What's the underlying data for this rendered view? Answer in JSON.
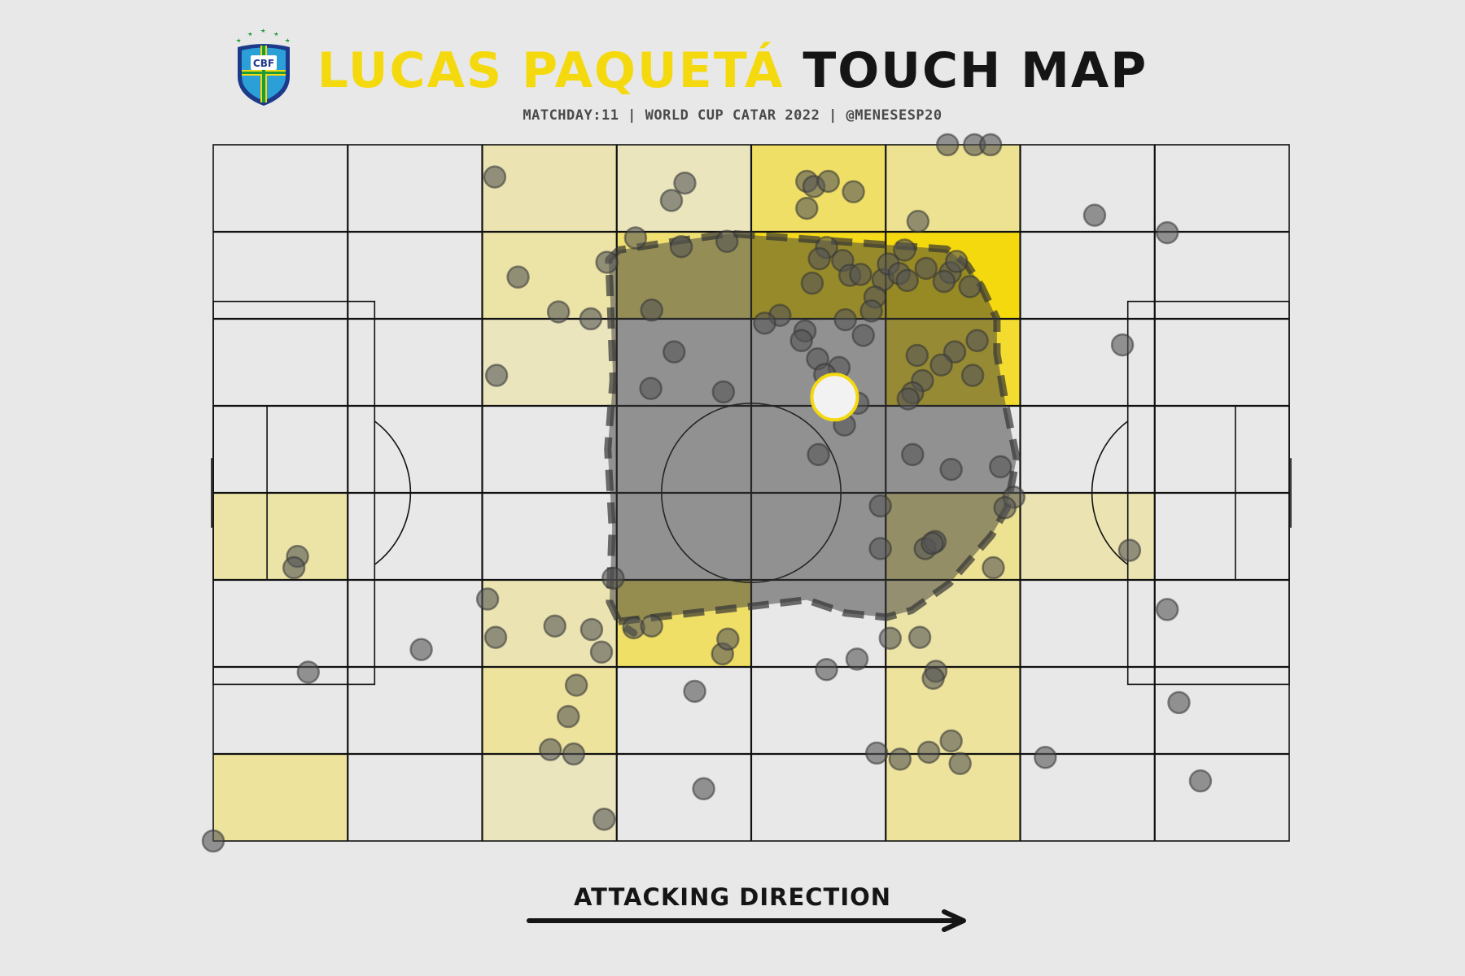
{
  "header": {
    "title_highlight": "LUCAS PAQUETÁ",
    "title_rest": "TOUCH MAP",
    "subtitle": "MATCHDAY:11 | WORLD CUP CATAR 2022 | @MENESESP20",
    "logo_text": "CBF"
  },
  "footer": {
    "direction_label": "ATTACKING DIRECTION"
  },
  "colors": {
    "background": "#e8e8e8",
    "highlight": "#f5d90f",
    "heat_max": "#f5d90f",
    "touch": "#555555",
    "hull": "#3a3a3a",
    "centroid_fill": "#f2f2f2",
    "centroid_edge": "#f5d90f"
  },
  "chart_data": {
    "type": "scatter",
    "pitch": {
      "length": 120,
      "width": 80,
      "direction": "left-to-right"
    },
    "grid": {
      "cols": 8,
      "rows": 8
    },
    "heat_grid": [
      [
        0,
        0,
        0.25,
        0.2,
        0.6,
        0.4,
        0,
        0
      ],
      [
        0,
        0,
        0.3,
        0.55,
        0.95,
        1.0,
        0,
        0
      ],
      [
        0,
        0,
        0.2,
        0,
        0,
        0.85,
        0,
        0
      ],
      [
        0,
        0,
        0,
        0,
        0,
        0,
        0,
        0
      ],
      [
        0.3,
        0,
        0,
        0,
        0,
        0.4,
        0.25,
        0
      ],
      [
        0,
        0,
        0.25,
        0.6,
        0,
        0.3,
        0,
        0
      ],
      [
        0,
        0,
        0.35,
        0,
        0,
        0.35,
        0,
        0
      ],
      [
        0.35,
        0,
        0.2,
        0,
        0,
        0.35,
        0,
        0
      ]
    ],
    "touches": [
      [
        31.4,
        3.7
      ],
      [
        52.6,
        4.4
      ],
      [
        51.1,
        6.4
      ],
      [
        66.2,
        4.2
      ],
      [
        67.0,
        4.8
      ],
      [
        68.6,
        4.2
      ],
      [
        71.4,
        5.4
      ],
      [
        66.2,
        7.3
      ],
      [
        81.9,
        0
      ],
      [
        84.9,
        0
      ],
      [
        86.7,
        0
      ],
      [
        78.6,
        8.8
      ],
      [
        98.3,
        8.1
      ],
      [
        106.4,
        10.1
      ],
      [
        47.1,
        10.7
      ],
      [
        52.2,
        11.7
      ],
      [
        57.3,
        11.1
      ],
      [
        43.9,
        13.5
      ],
      [
        34.0,
        15.2
      ],
      [
        38.5,
        19.2
      ],
      [
        42.1,
        20.0
      ],
      [
        48.9,
        19.0
      ],
      [
        31.6,
        26.5
      ],
      [
        51.4,
        23.8
      ],
      [
        48.8,
        28.0
      ],
      [
        56.9,
        28.4
      ],
      [
        66.8,
        15.9
      ],
      [
        68.4,
        11.8
      ],
      [
        67.6,
        13.1
      ],
      [
        70.2,
        13.3
      ],
      [
        71.0,
        15.0
      ],
      [
        72.2,
        14.9
      ],
      [
        74.7,
        15.5
      ],
      [
        77.1,
        12.1
      ],
      [
        75.3,
        13.7
      ],
      [
        76.5,
        14.8
      ],
      [
        77.4,
        15.6
      ],
      [
        79.5,
        14.2
      ],
      [
        82.2,
        14.7
      ],
      [
        81.5,
        15.7
      ],
      [
        82.9,
        13.4
      ],
      [
        84.4,
        16.3
      ],
      [
        73.8,
        17.5
      ],
      [
        73.4,
        19.1
      ],
      [
        70.5,
        20.1
      ],
      [
        66.0,
        21.4
      ],
      [
        63.2,
        19.6
      ],
      [
        65.6,
        22.5
      ],
      [
        67.4,
        24.6
      ],
      [
        69.8,
        25.6
      ],
      [
        72.5,
        21.9
      ],
      [
        68.2,
        26.4
      ],
      [
        61.5,
        20.5
      ],
      [
        82.7,
        23.8
      ],
      [
        78.5,
        24.2
      ],
      [
        81.2,
        25.3
      ],
      [
        79.1,
        27.1
      ],
      [
        78.0,
        28.5
      ],
      [
        77.5,
        29.2
      ],
      [
        85.2,
        22.5
      ],
      [
        84.7,
        26.5
      ],
      [
        71.9,
        29.7
      ],
      [
        70.4,
        32.2
      ],
      [
        67.5,
        35.6
      ],
      [
        78.0,
        35.6
      ],
      [
        82.3,
        37.3
      ],
      [
        87.8,
        37.0
      ],
      [
        89.3,
        40.5
      ],
      [
        88.3,
        41.7
      ],
      [
        74.4,
        41.5
      ],
      [
        74.4,
        46.4
      ],
      [
        79.4,
        46.4
      ],
      [
        80.5,
        45.6
      ],
      [
        80.2,
        45.8
      ],
      [
        87.0,
        48.6
      ],
      [
        44.6,
        49.8
      ],
      [
        30.6,
        52.2
      ],
      [
        31.5,
        56.6
      ],
      [
        38.1,
        55.3
      ],
      [
        42.2,
        55.7
      ],
      [
        46.9,
        55.5
      ],
      [
        48.9,
        55.3
      ],
      [
        56.8,
        58.5
      ],
      [
        43.3,
        58.3
      ],
      [
        57.4,
        56.8
      ],
      [
        71.8,
        59.1
      ],
      [
        75.5,
        56.7
      ],
      [
        78.8,
        56.6
      ],
      [
        68.4,
        60.3
      ],
      [
        80.6,
        60.5
      ],
      [
        80.3,
        61.3
      ],
      [
        53.7,
        62.8
      ],
      [
        40.5,
        62.1
      ],
      [
        39.6,
        65.7
      ],
      [
        37.6,
        69.5
      ],
      [
        40.2,
        70.0
      ],
      [
        74.0,
        69.9
      ],
      [
        76.6,
        70.6
      ],
      [
        79.8,
        69.8
      ],
      [
        82.3,
        68.5
      ],
      [
        83.3,
        71.1
      ],
      [
        92.8,
        70.4
      ],
      [
        54.7,
        74.0
      ],
      [
        43.6,
        77.5
      ],
      [
        0,
        80.0
      ],
      [
        9.4,
        47.3
      ],
      [
        9.0,
        48.6
      ],
      [
        10.6,
        60.6
      ],
      [
        23.2,
        58.0
      ],
      [
        101.4,
        23.0
      ],
      [
        102.2,
        46.6
      ],
      [
        106.4,
        53.4
      ],
      [
        107.7,
        64.1
      ],
      [
        110.1,
        73.1
      ]
    ],
    "hull": [
      [
        44.1,
        13.2
      ],
      [
        45.2,
        12.1
      ],
      [
        52.1,
        11.0
      ],
      [
        57.6,
        10.2
      ],
      [
        81.8,
        12.0
      ],
      [
        84.1,
        13.8
      ],
      [
        85.7,
        16.3
      ],
      [
        87.4,
        20.0
      ],
      [
        87.4,
        24.0
      ],
      [
        88.4,
        30.0
      ],
      [
        89.0,
        33.0
      ],
      [
        89.6,
        36.0
      ],
      [
        88.5,
        41.8
      ],
      [
        86.8,
        44.9
      ],
      [
        82.1,
        50.4
      ],
      [
        77.9,
        53.5
      ],
      [
        75.1,
        54.3
      ],
      [
        70.5,
        53.8
      ],
      [
        66.2,
        52.3
      ],
      [
        45.0,
        54.8
      ],
      [
        46.9,
        56.1
      ],
      [
        45.4,
        55.1
      ],
      [
        44.2,
        52.5
      ],
      [
        44.5,
        44.0
      ],
      [
        44.0,
        35.0
      ],
      [
        44.6,
        27.0
      ],
      [
        44.3,
        18.0
      ],
      [
        44.1,
        13.2
      ]
    ],
    "centroid": [
      69.3,
      29.0
    ]
  }
}
